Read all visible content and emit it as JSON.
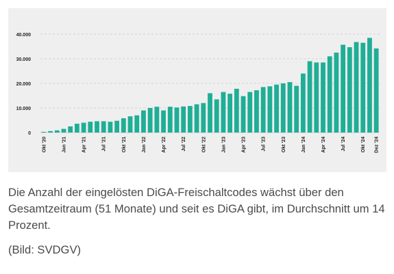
{
  "chart_data": {
    "type": "bar",
    "bar_color": "#1fae96",
    "ylim": [
      0,
      40000
    ],
    "y_ticks": [
      {
        "value": 0,
        "label": "0"
      },
      {
        "value": 10000,
        "label": "10.000"
      },
      {
        "value": 20000,
        "label": "20.000"
      },
      {
        "value": 30000,
        "label": "30.000"
      },
      {
        "value": 40000,
        "label": "40.000"
      }
    ],
    "grid": true,
    "x_tick_labels": [
      {
        "index": 0,
        "label": "Okt '20"
      },
      {
        "index": 3,
        "label": "Jan '21"
      },
      {
        "index": 6,
        "label": "Apr '21"
      },
      {
        "index": 9,
        "label": "Jul '21"
      },
      {
        "index": 12,
        "label": "Okt '21"
      },
      {
        "index": 15,
        "label": "Jan '22"
      },
      {
        "index": 18,
        "label": "Apr '22"
      },
      {
        "index": 21,
        "label": "Jul '22"
      },
      {
        "index": 24,
        "label": "Okt '22"
      },
      {
        "index": 27,
        "label": "Jan '23"
      },
      {
        "index": 30,
        "label": "Apr '23"
      },
      {
        "index": 33,
        "label": "Jul '23"
      },
      {
        "index": 36,
        "label": "Okt '23"
      },
      {
        "index": 39,
        "label": "Jan '24"
      },
      {
        "index": 42,
        "label": "Apr '24"
      },
      {
        "index": 45,
        "label": "Jul '24"
      },
      {
        "index": 48,
        "label": "Okt '24"
      },
      {
        "index": 50,
        "label": "Dez '24"
      }
    ],
    "values": [
      300,
      600,
      900,
      1500,
      2500,
      3600,
      4000,
      4400,
      4600,
      4600,
      4400,
      4800,
      5800,
      6600,
      7000,
      9000,
      10000,
      10500,
      9000,
      10500,
      10200,
      10600,
      10800,
      11500,
      12000,
      16000,
      13500,
      16500,
      15800,
      17800,
      14800,
      16500,
      17200,
      18500,
      18800,
      19500,
      20000,
      20500,
      19000,
      24000,
      29000,
      28500,
      28500,
      31000,
      32500,
      35700,
      34700,
      36800,
      36500,
      38500,
      34200
    ]
  },
  "caption": "Die Anzahl der eingelösten DiGA-Freischaltcodes wächst über den Gesamtzeitraum (51 Monate) und seit es DiGA gibt, im Durchschnitt um 14 Prozent.",
  "credit": "(Bild: SVDGV)"
}
